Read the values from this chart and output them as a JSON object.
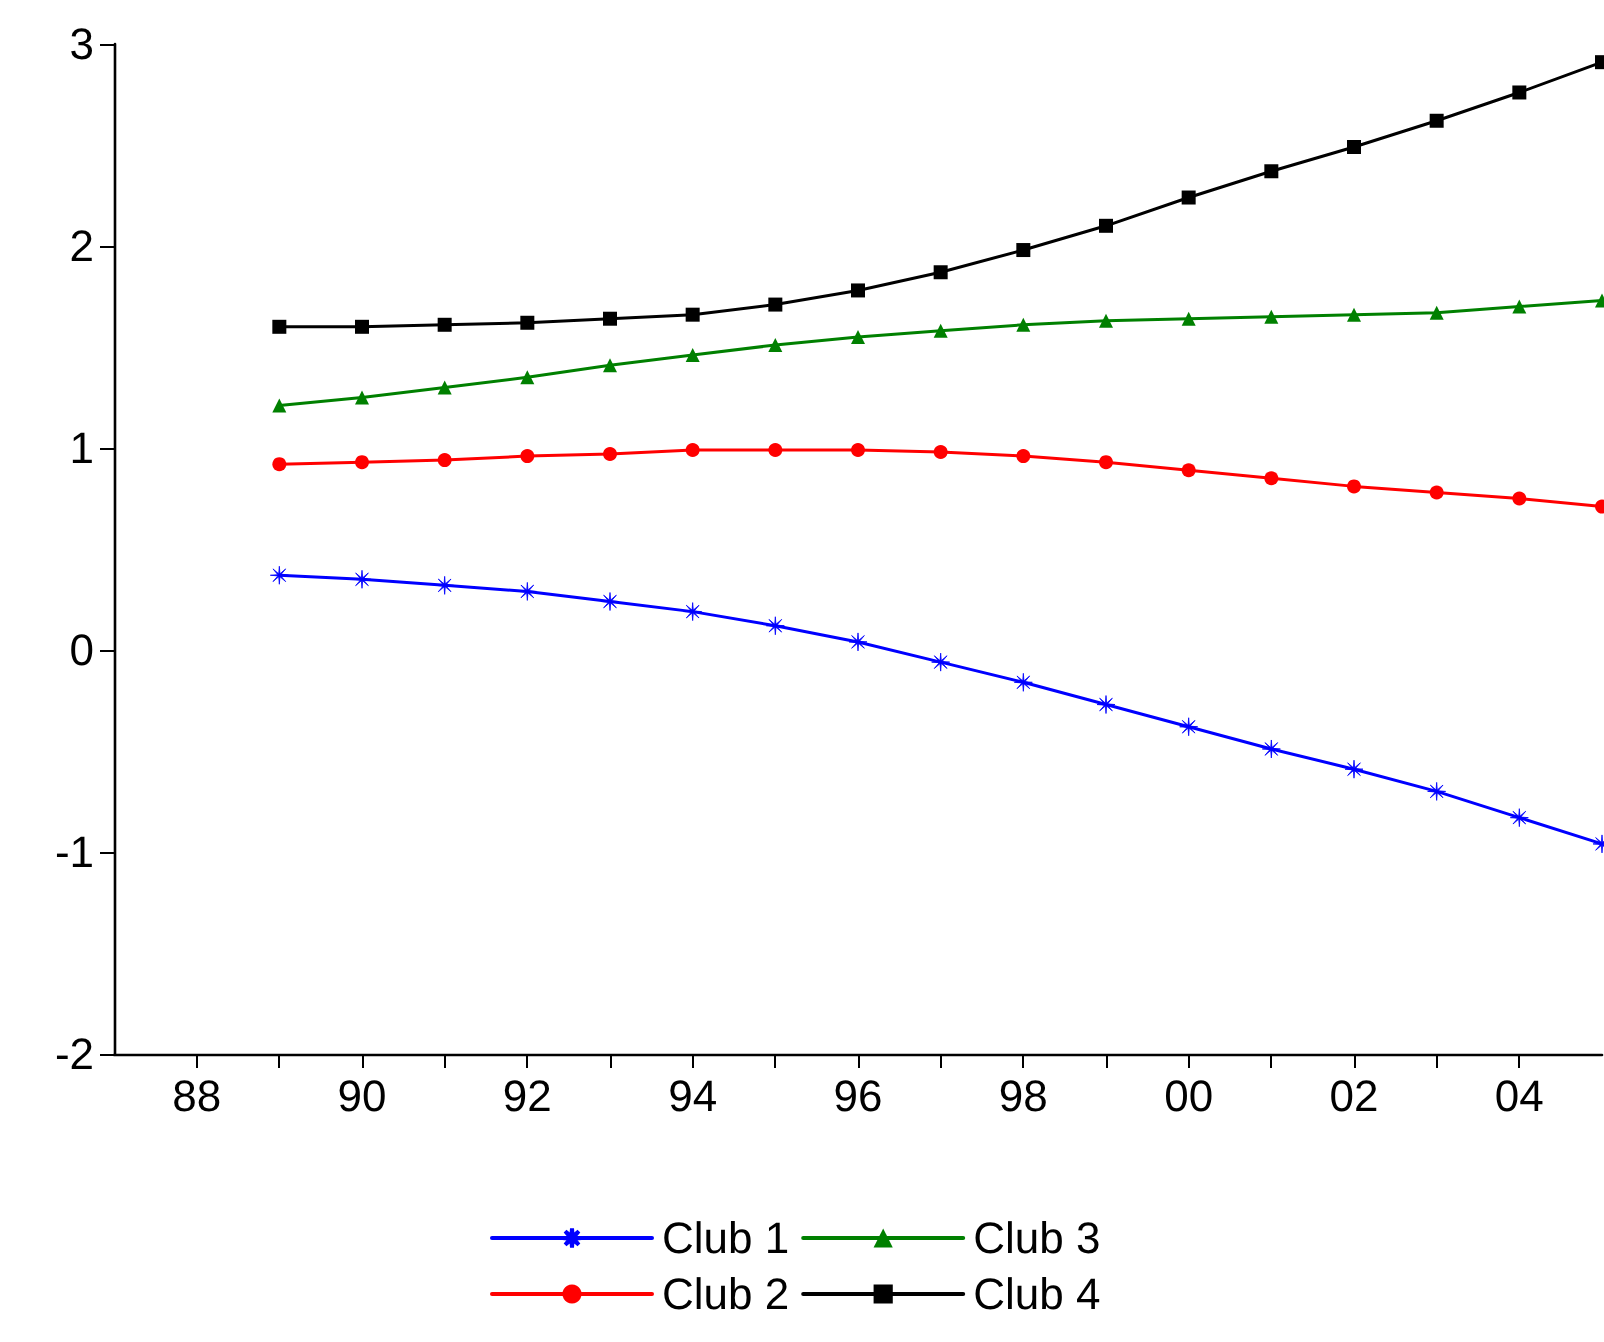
{
  "chart_data": {
    "type": "line",
    "x": [
      1989,
      1990,
      1991,
      1992,
      1993,
      1994,
      1995,
      1996,
      1997,
      1998,
      1999,
      2000,
      2001,
      2002,
      2003,
      2004,
      2005
    ],
    "series": [
      {
        "name": "Club 1",
        "color": "#0000ff",
        "marker": "star",
        "values": [
          0.37,
          0.35,
          0.32,
          0.29,
          0.24,
          0.19,
          0.12,
          0.04,
          -0.06,
          -0.16,
          -0.27,
          -0.38,
          -0.49,
          -0.59,
          -0.7,
          -0.83,
          -0.96
        ]
      },
      {
        "name": "Club 2",
        "color": "#ff0000",
        "marker": "circle",
        "values": [
          0.92,
          0.93,
          0.94,
          0.96,
          0.97,
          0.99,
          0.99,
          0.99,
          0.98,
          0.96,
          0.93,
          0.89,
          0.85,
          0.81,
          0.78,
          0.75,
          0.71
        ]
      },
      {
        "name": "Club 3",
        "color": "#008000",
        "marker": "triangle",
        "values": [
          1.21,
          1.25,
          1.3,
          1.35,
          1.41,
          1.46,
          1.51,
          1.55,
          1.58,
          1.61,
          1.63,
          1.64,
          1.65,
          1.66,
          1.67,
          1.7,
          1.73
        ]
      },
      {
        "name": "Club 4",
        "color": "#000000",
        "marker": "square",
        "values": [
          1.6,
          1.6,
          1.61,
          1.62,
          1.64,
          1.66,
          1.71,
          1.78,
          1.87,
          1.98,
          2.1,
          2.24,
          2.37,
          2.49,
          2.62,
          2.76,
          2.91
        ]
      }
    ],
    "xlim": [
      1987,
      2005
    ],
    "xticks": [
      {
        "value": 1988,
        "label": "88"
      },
      {
        "value": 1989,
        "label": null
      },
      {
        "value": 1990,
        "label": "90"
      },
      {
        "value": 1991,
        "label": null
      },
      {
        "value": 1992,
        "label": "92"
      },
      {
        "value": 1993,
        "label": null
      },
      {
        "value": 1994,
        "label": "94"
      },
      {
        "value": 1995,
        "label": null
      },
      {
        "value": 1996,
        "label": "96"
      },
      {
        "value": 1997,
        "label": null
      },
      {
        "value": 1998,
        "label": "98"
      },
      {
        "value": 1999,
        "label": null
      },
      {
        "value": 2000,
        "label": "00"
      },
      {
        "value": 2001,
        "label": null
      },
      {
        "value": 2002,
        "label": "02"
      },
      {
        "value": 2003,
        "label": null
      },
      {
        "value": 2004,
        "label": "04"
      }
    ],
    "ylim": [
      -2,
      3
    ],
    "yticks": [
      -2,
      -1,
      0,
      1,
      2,
      3
    ],
    "grid": false,
    "legend": "bottom",
    "line_style": "solid"
  }
}
